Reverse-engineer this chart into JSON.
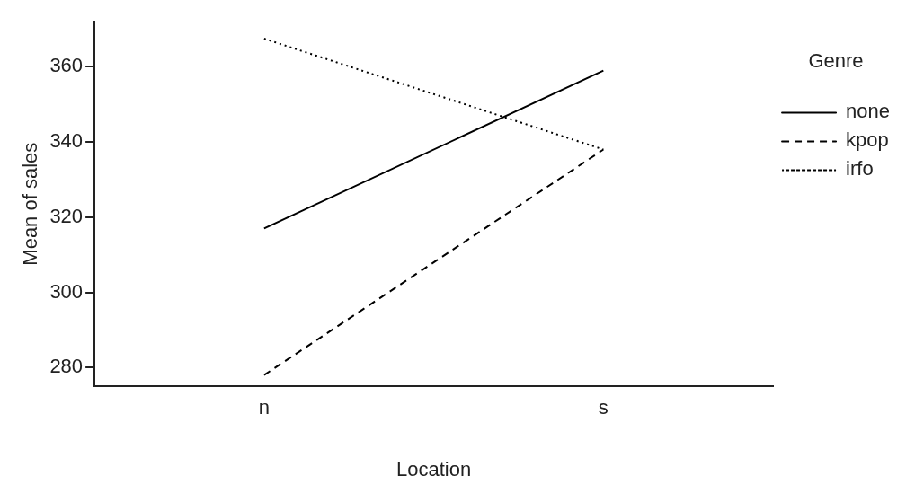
{
  "chart_data": {
    "type": "line",
    "xlabel": "Location",
    "ylabel": "Mean of sales",
    "legend_title": "Genre",
    "categories": [
      "n",
      "s"
    ],
    "series": [
      {
        "name": "none",
        "color": "#000000",
        "values": [
          317,
          359
        ],
        "line_style": "solid"
      },
      {
        "name": "kpop",
        "color": "#000000",
        "values": [
          278,
          338
        ],
        "line_style": "dashed"
      },
      {
        "name": "irfo",
        "color": "#000000",
        "values": [
          367.5,
          338
        ],
        "line_style": "dotted"
      }
    ],
    "ylim": [
      275,
      372
    ],
    "yticks": [
      280,
      300,
      320,
      340,
      360
    ],
    "grid": false,
    "legend": "right",
    "marker": "none"
  }
}
